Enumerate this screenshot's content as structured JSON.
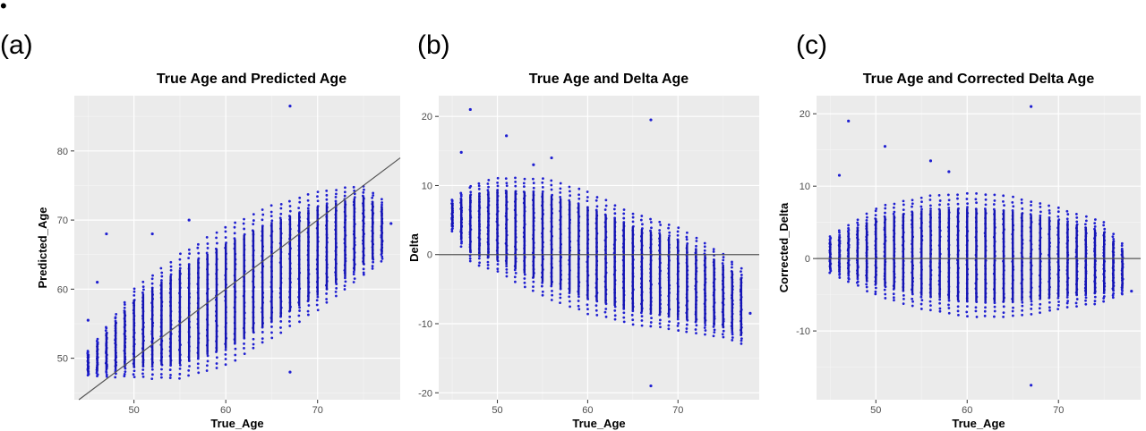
{
  "corner_mark": "•",
  "chart_data": [
    {
      "type": "scatter",
      "panel_label": "(a)",
      "title": "True Age and Predicted Age",
      "xlabel": "True_Age",
      "ylabel": "Predicted_Age",
      "xlim": [
        43.5,
        79
      ],
      "ylim": [
        44,
        88
      ],
      "x_ticks": [
        50,
        60,
        70
      ],
      "y_ticks": [
        50,
        60,
        70,
        80
      ],
      "grid": true,
      "point_color": "#1f1fd1",
      "reference_line": {
        "type": "identity",
        "from": [
          44,
          44
        ],
        "to": [
          79,
          79
        ]
      },
      "bands": {
        "x_start": 45,
        "x_end": 77,
        "lower": [
          [
            45,
            47.5
          ],
          [
            55,
            47
          ],
          [
            60,
            49
          ],
          [
            65,
            53
          ],
          [
            70,
            57
          ],
          [
            75,
            62
          ],
          [
            77,
            64
          ]
        ],
        "upper": [
          [
            45,
            51
          ],
          [
            50,
            60
          ],
          [
            55,
            65
          ],
          [
            60,
            69
          ],
          [
            65,
            72
          ],
          [
            70,
            74
          ],
          [
            75,
            75
          ],
          [
            77,
            73
          ]
        ]
      },
      "outliers": [
        [
          67,
          86.5
        ],
        [
          67,
          48
        ],
        [
          47,
          68
        ],
        [
          52,
          68
        ],
        [
          56,
          70
        ],
        [
          45,
          55.5
        ],
        [
          46,
          61
        ],
        [
          78,
          69.5
        ]
      ]
    },
    {
      "type": "scatter",
      "panel_label": "(b)",
      "title": "True Age and Delta Age",
      "xlabel": "True_Age",
      "ylabel": "Delta",
      "xlim": [
        43.5,
        79
      ],
      "ylim": [
        -21,
        23
      ],
      "x_ticks": [
        50,
        60,
        70
      ],
      "y_ticks": [
        -20,
        -10,
        0,
        10,
        20
      ],
      "grid": true,
      "point_color": "#1f1fd1",
      "reference_line": {
        "type": "horizontal",
        "y": 0
      },
      "bands": {
        "x_start": 45,
        "x_end": 77,
        "lower": [
          [
            45,
            3.5
          ],
          [
            47,
            -1
          ],
          [
            50,
            -2.5
          ],
          [
            55,
            -6
          ],
          [
            60,
            -8.5
          ],
          [
            65,
            -10
          ],
          [
            70,
            -11
          ],
          [
            75,
            -12
          ],
          [
            77,
            -13
          ]
        ],
        "upper": [
          [
            45,
            8
          ],
          [
            47,
            10
          ],
          [
            50,
            11
          ],
          [
            55,
            11
          ],
          [
            60,
            9
          ],
          [
            65,
            6
          ],
          [
            70,
            4
          ],
          [
            75,
            0
          ],
          [
            77,
            -2
          ]
        ]
      },
      "outliers": [
        [
          47,
          21
        ],
        [
          51,
          17.2
        ],
        [
          67,
          19.5
        ],
        [
          67,
          -19
        ],
        [
          46,
          14.8
        ],
        [
          54,
          13
        ],
        [
          56,
          14
        ],
        [
          78,
          -8.5
        ]
      ]
    },
    {
      "type": "scatter",
      "panel_label": "(c)",
      "title": "True Age and Corrected Delta Age",
      "xlabel": "True_Age",
      "ylabel": "Corrected_Delta",
      "xlim": [
        43.5,
        79
      ],
      "ylim": [
        -19.5,
        22.5
      ],
      "x_ticks": [
        50,
        60,
        70
      ],
      "y_ticks": [
        -10,
        0,
        10,
        20
      ],
      "grid": true,
      "point_color": "#1f1fd1",
      "reference_line": {
        "type": "horizontal",
        "y": 0
      },
      "bands": {
        "x_start": 45,
        "x_end": 77,
        "lower": [
          [
            45,
            -2
          ],
          [
            50,
            -5
          ],
          [
            55,
            -7
          ],
          [
            60,
            -8
          ],
          [
            65,
            -8
          ],
          [
            70,
            -7
          ],
          [
            75,
            -6
          ],
          [
            77,
            -5
          ]
        ],
        "upper": [
          [
            45,
            3
          ],
          [
            50,
            7
          ],
          [
            55,
            8.5
          ],
          [
            60,
            9
          ],
          [
            65,
            8.5
          ],
          [
            70,
            7
          ],
          [
            75,
            5
          ],
          [
            77,
            2
          ]
        ]
      },
      "outliers": [
        [
          47,
          19
        ],
        [
          51,
          15.5
        ],
        [
          67,
          21
        ],
        [
          67,
          -17.5
        ],
        [
          46,
          11.5
        ],
        [
          56,
          13.5
        ],
        [
          58,
          12
        ],
        [
          78,
          -4.5
        ]
      ]
    }
  ]
}
